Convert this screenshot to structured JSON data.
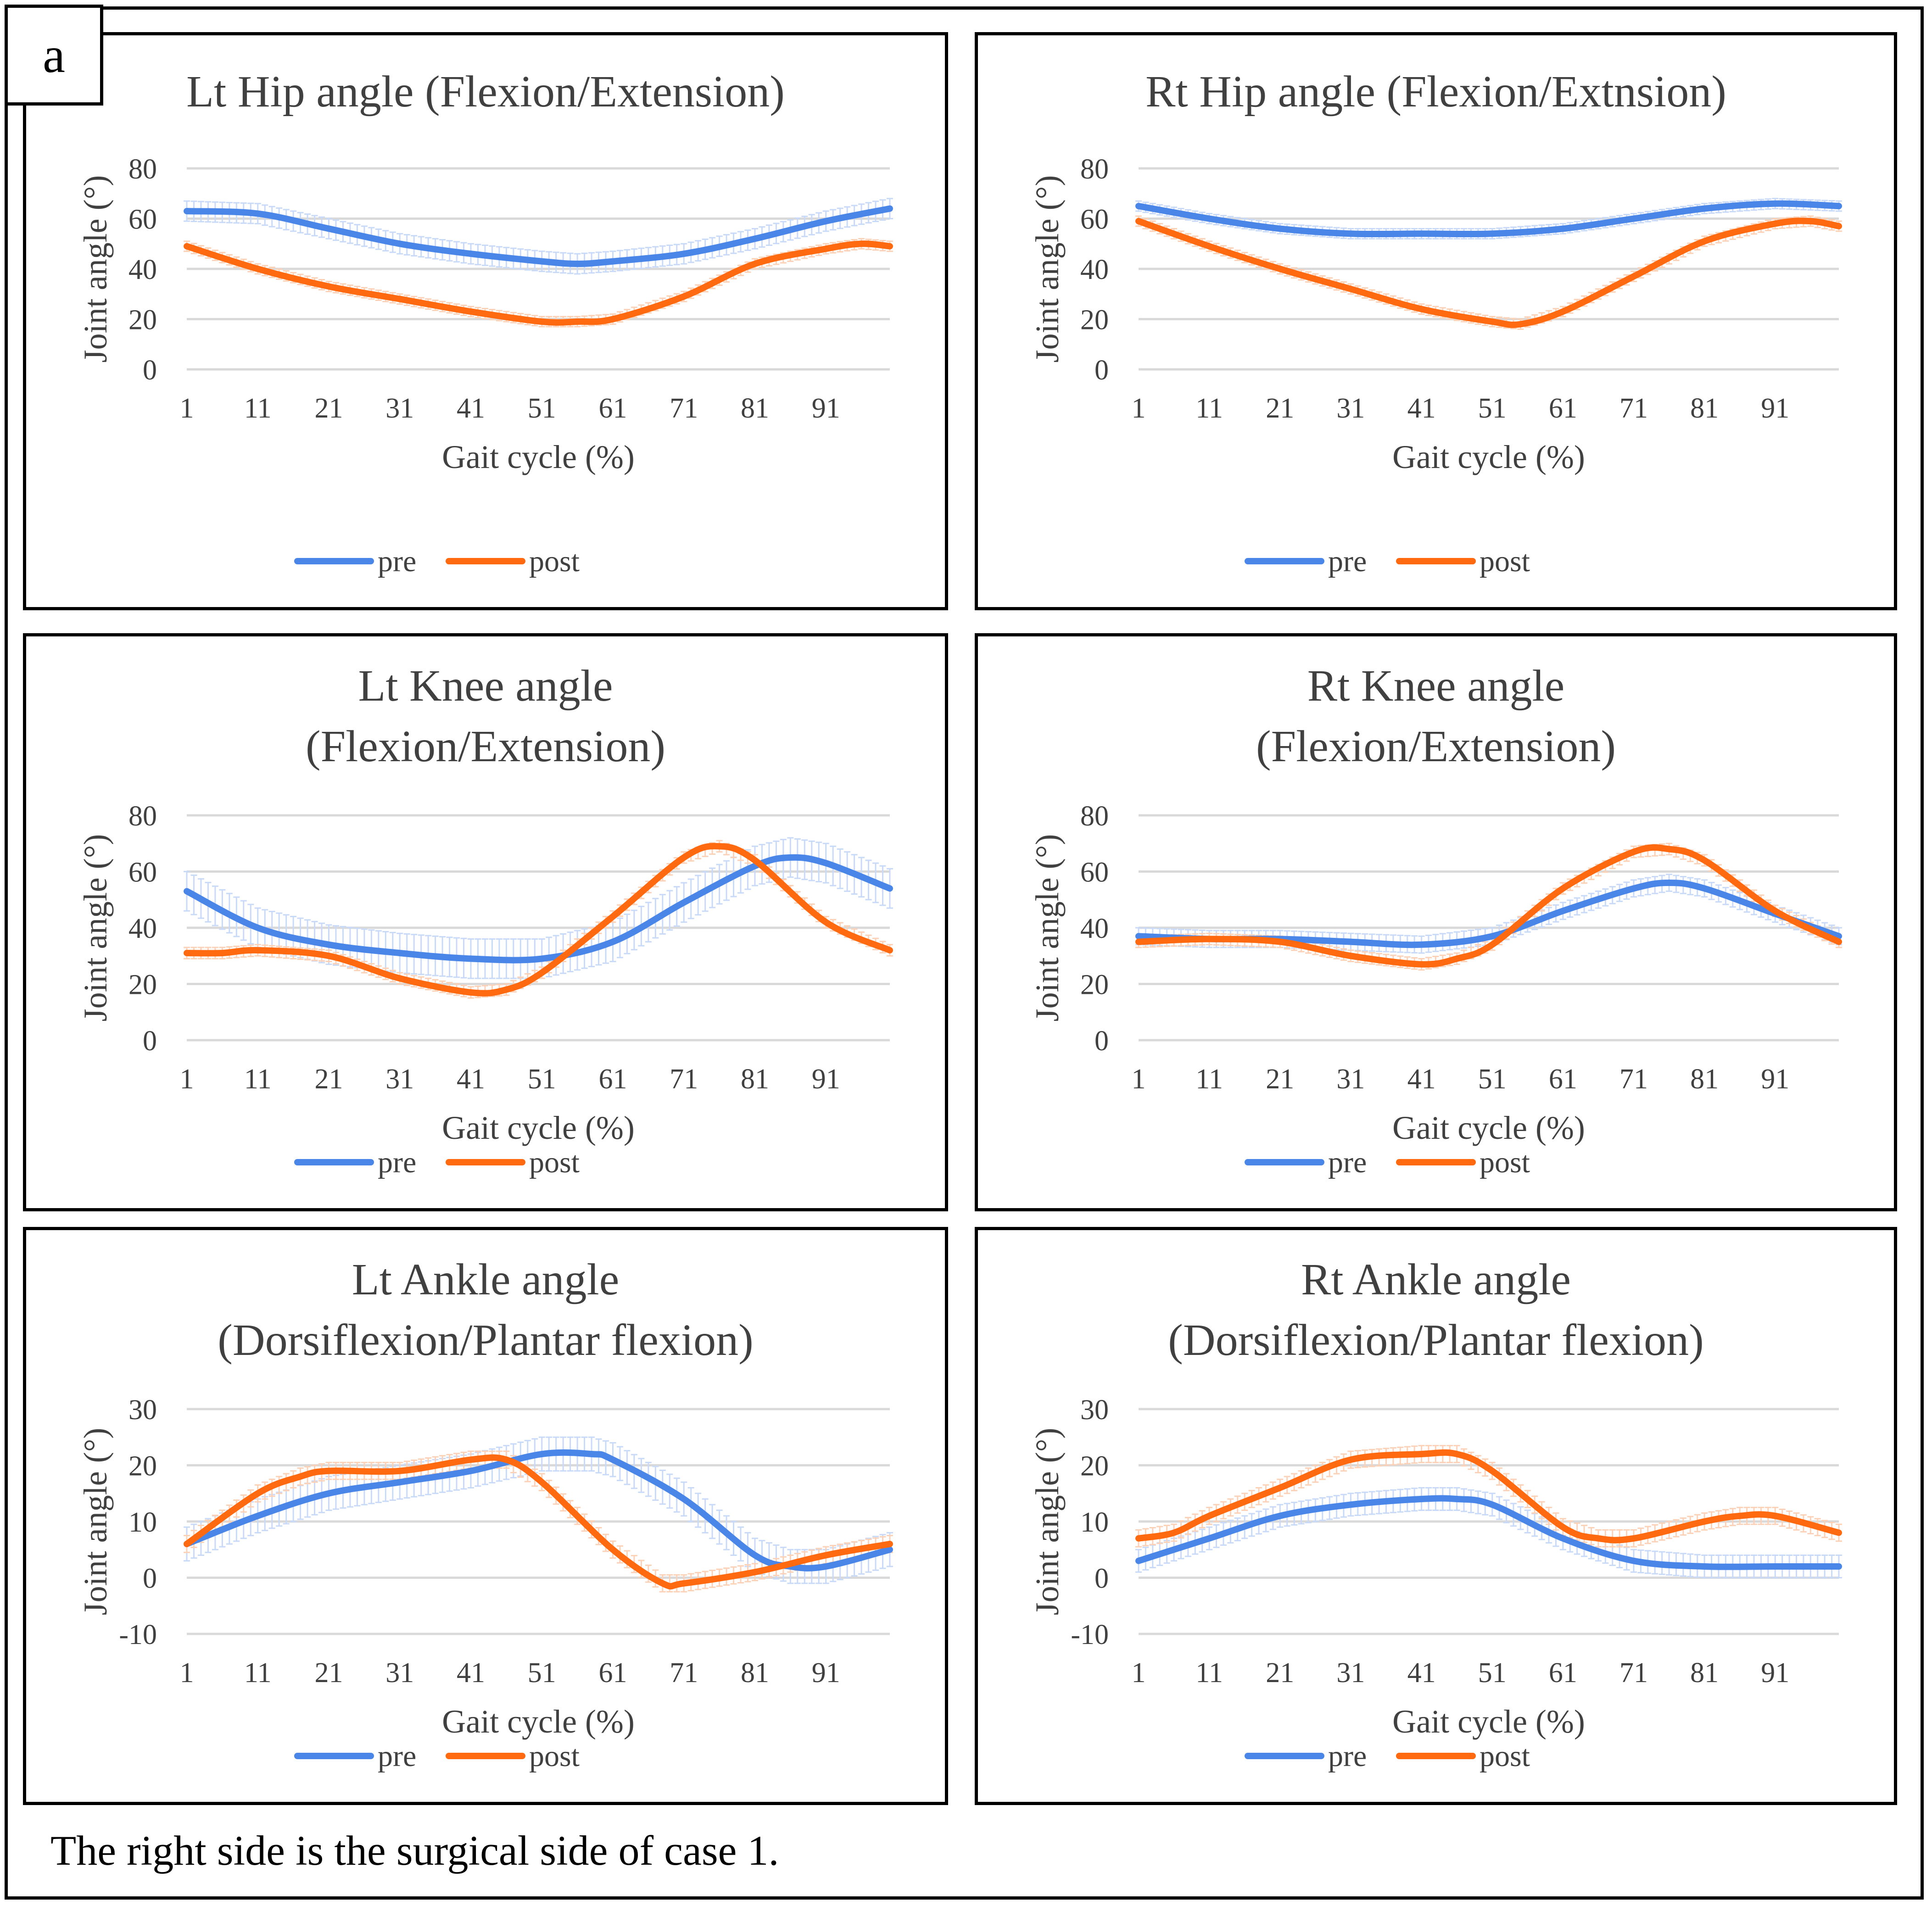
{
  "panel_label": "a",
  "caption": "The right side is the surgical side of case 1.",
  "colors": {
    "pre": "#4a86e8",
    "post": "#ff6a10",
    "pre_band": "#c9daf8",
    "post_band": "#fbd2b8",
    "grid": "#d9d9d9",
    "text": "#404040"
  },
  "chart_data": [
    {
      "type": "line",
      "title": [
        "Lt Hip angle  (Flexion/Extension)"
      ],
      "xlabel": "Gait cycle (%)",
      "ylabel": "Joint angle (°)",
      "xticks": [
        "1",
        "11",
        "21",
        "31",
        "41",
        "51",
        "61",
        "71",
        "81",
        "91"
      ],
      "ylim": [
        0,
        80
      ],
      "yticks": [
        "0",
        "20",
        "40",
        "60",
        "80"
      ],
      "legend": [
        "pre",
        "post"
      ],
      "legend_position": "bottom",
      "grid": true,
      "series": [
        {
          "name": "pre",
          "x": [
            1,
            11,
            21,
            31,
            41,
            51,
            56,
            61,
            71,
            81,
            91,
            100
          ],
          "y": [
            63,
            62,
            56,
            50,
            46,
            43,
            42,
            43,
            46,
            52,
            59,
            64
          ],
          "sd": 4
        },
        {
          "name": "post",
          "x": [
            1,
            11,
            21,
            31,
            41,
            51,
            56,
            61,
            71,
            81,
            91,
            96,
            100
          ],
          "y": [
            49,
            40,
            33,
            28,
            23,
            19,
            19,
            20,
            29,
            42,
            48,
            50,
            49
          ],
          "sd": 2
        }
      ]
    },
    {
      "type": "line",
      "title": [
        "Rt Hip angle  (Flexion/Extnsion)"
      ],
      "xlabel": "Gait cycle (%)",
      "ylabel": "Joint angle (°)",
      "xticks": [
        "1",
        "11",
        "21",
        "31",
        "41",
        "51",
        "61",
        "71",
        "81",
        "91"
      ],
      "ylim": [
        0,
        80
      ],
      "yticks": [
        "0",
        "20",
        "40",
        "60",
        "80"
      ],
      "legend": [
        "pre",
        "post"
      ],
      "legend_position": "bottom",
      "grid": true,
      "series": [
        {
          "name": "pre",
          "x": [
            1,
            11,
            21,
            31,
            41,
            51,
            61,
            71,
            81,
            91,
            100
          ],
          "y": [
            65,
            60,
            56,
            54,
            54,
            54,
            56,
            60,
            64,
            66,
            65
          ],
          "sd": 2
        },
        {
          "name": "post",
          "x": [
            1,
            11,
            21,
            31,
            41,
            51,
            55,
            61,
            71,
            81,
            91,
            96,
            100
          ],
          "y": [
            59,
            49,
            40,
            32,
            24,
            19,
            18,
            23,
            37,
            51,
            58,
            59,
            57
          ],
          "sd": 2
        }
      ]
    },
    {
      "type": "line",
      "title": [
        "Lt Knee angle",
        "(Flexion/Extension)"
      ],
      "xlabel": "Gait cycle (%)",
      "ylabel": "Joint angle (°)",
      "xticks": [
        "1",
        "11",
        "21",
        "31",
        "41",
        "51",
        "61",
        "71",
        "81",
        "91"
      ],
      "ylim": [
        0,
        80
      ],
      "yticks": [
        "0",
        "20",
        "40",
        "60",
        "80"
      ],
      "legend": [
        "pre",
        "post"
      ],
      "legend_position": "bottom",
      "grid": true,
      "series": [
        {
          "name": "pre",
          "x": [
            1,
            11,
            21,
            31,
            41,
            51,
            61,
            71,
            81,
            86,
            91,
            100
          ],
          "y": [
            53,
            40,
            34,
            31,
            29,
            29,
            35,
            49,
            62,
            65,
            63,
            54
          ],
          "sd": 7
        },
        {
          "name": "post",
          "x": [
            1,
            6,
            11,
            21,
            31,
            41,
            46,
            51,
            61,
            71,
            76,
            81,
            91,
            100
          ],
          "y": [
            31,
            31,
            32,
            30,
            22,
            17,
            18,
            24,
            44,
            65,
            69,
            64,
            42,
            32
          ],
          "sd": 2
        }
      ]
    },
    {
      "type": "line",
      "title": [
        "Rt Knee angle",
        "(Flexion/Extension)"
      ],
      "xlabel": "Gait cycle (%)",
      "ylabel": "Joint angle (°)",
      "xticks": [
        "1",
        "11",
        "21",
        "31",
        "41",
        "51",
        "61",
        "71",
        "81",
        "91"
      ],
      "ylim": [
        0,
        80
      ],
      "yticks": [
        "0",
        "20",
        "40",
        "60",
        "80"
      ],
      "legend": [
        "pre",
        "post"
      ],
      "legend_position": "bottom",
      "grid": true,
      "series": [
        {
          "name": "pre",
          "x": [
            1,
            11,
            21,
            31,
            41,
            51,
            61,
            71,
            76,
            81,
            91,
            100
          ],
          "y": [
            37,
            36,
            36,
            35,
            34,
            37,
            46,
            54,
            56,
            54,
            45,
            37
          ],
          "sd": 3
        },
        {
          "name": "post",
          "x": [
            1,
            11,
            21,
            31,
            41,
            46,
            51,
            61,
            71,
            76,
            81,
            91,
            100
          ],
          "y": [
            35,
            36,
            35,
            30,
            27,
            29,
            34,
            54,
            67,
            68,
            64,
            46,
            35
          ],
          "sd": 2
        }
      ]
    },
    {
      "type": "line",
      "title": [
        "Lt Ankle angle",
        "(Dorsiflexion/Plantar  flexion)"
      ],
      "xlabel": "Gait cycle (%)",
      "ylabel": "Joint angle (°)",
      "xticks": [
        "1",
        "11",
        "21",
        "31",
        "41",
        "51",
        "61",
        "71",
        "81",
        "91"
      ],
      "ylim": [
        -10,
        30
      ],
      "yticks": [
        "-10",
        "0",
        "10",
        "20",
        "30"
      ],
      "legend": [
        "pre",
        "post"
      ],
      "legend_position": "bottom",
      "grid": true,
      "series": [
        {
          "name": "pre",
          "x": [
            1,
            11,
            21,
            31,
            41,
            51,
            58,
            61,
            71,
            81,
            86,
            91,
            100
          ],
          "y": [
            6,
            11,
            15,
            17,
            19,
            22,
            22,
            21,
            14,
            4,
            2,
            2,
            5
          ],
          "sd": 3
        },
        {
          "name": "post",
          "x": [
            1,
            11,
            17,
            21,
            31,
            41,
            46,
            51,
            61,
            68,
            71,
            81,
            91,
            100
          ],
          "y": [
            6,
            15,
            18,
            19,
            19,
            21,
            21,
            17,
            5,
            -1,
            -1,
            1,
            4,
            6
          ],
          "sd": 1.5
        }
      ]
    },
    {
      "type": "line",
      "title": [
        "Rt Ankle angle",
        "(Dorsiflexion/Plantar  flexion)"
      ],
      "xlabel": "Gait cycle (%)",
      "ylabel": "Joint angle (°)",
      "xticks": [
        "1",
        "11",
        "21",
        "31",
        "41",
        "51",
        "61",
        "71",
        "81",
        "91"
      ],
      "ylim": [
        -10,
        30
      ],
      "yticks": [
        "-10",
        "0",
        "10",
        "20",
        "30"
      ],
      "legend": [
        "pre",
        "post"
      ],
      "legend_position": "bottom",
      "grid": true,
      "series": [
        {
          "name": "pre",
          "x": [
            1,
            11,
            21,
            31,
            41,
            46,
            51,
            61,
            71,
            81,
            91,
            100
          ],
          "y": [
            3,
            7,
            11,
            13,
            14,
            14,
            13,
            7,
            3,
            2,
            2,
            2
          ],
          "sd": 2
        },
        {
          "name": "post",
          "x": [
            1,
            6,
            11,
            21,
            31,
            41,
            46,
            51,
            61,
            66,
            71,
            81,
            86,
            91,
            100
          ],
          "y": [
            7,
            8,
            11,
            16,
            21,
            22,
            22,
            19,
            9,
            7,
            7,
            10,
            11,
            11,
            8
          ],
          "sd": 1.5
        }
      ]
    }
  ]
}
